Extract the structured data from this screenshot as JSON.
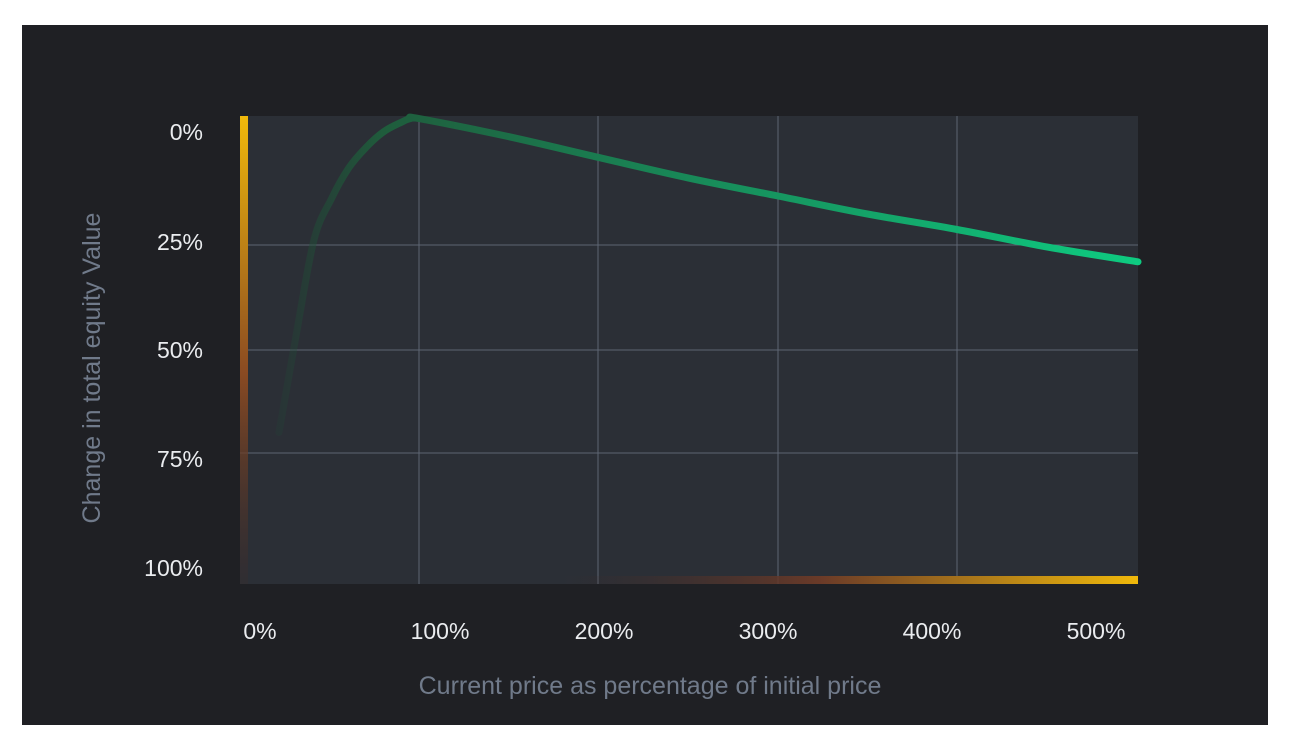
{
  "chart_data": {
    "type": "line",
    "title": "",
    "xlabel": "Current price as percentage of initial price",
    "ylabel": "Change in total equity Value",
    "x_ticks": [
      "0%",
      "100%",
      "200%",
      "300%",
      "400%",
      "500%"
    ],
    "y_ticks": [
      "0%",
      "25%",
      "50%",
      "75%",
      "100%"
    ],
    "xlim": [
      0,
      500
    ],
    "ylim": [
      0,
      100
    ],
    "y_inverted": true,
    "grid": true,
    "legend": "none",
    "series": [
      {
        "x": [
          20,
          30,
          40,
          50,
          60,
          70,
          80,
          90,
          95,
          100,
          150,
          200,
          250,
          300,
          350,
          400,
          450,
          500
        ],
        "y": [
          70,
          46,
          24,
          16,
          10,
          6,
          3,
          1.2,
          0.5,
          0.5,
          4,
          8,
          12,
          15.5,
          19,
          22,
          25.5,
          29
        ]
      }
    ],
    "colors": {
      "line_start": "#1f5c3c",
      "line_end": "#0ecb81",
      "accent": "#f0b90b",
      "plot_bg": "#2b2f36",
      "grid": "#5e6673"
    }
  }
}
